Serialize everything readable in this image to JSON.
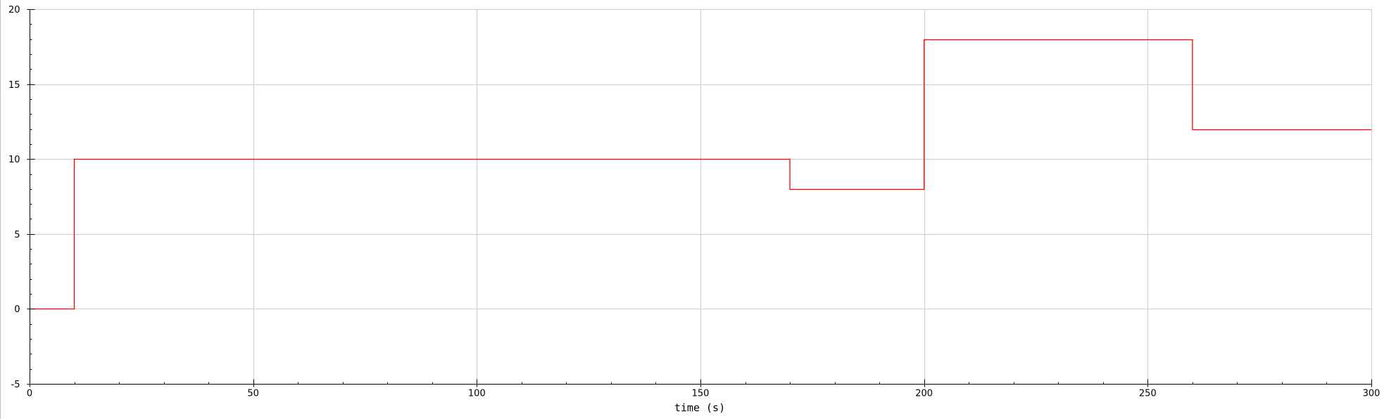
{
  "chart_data": {
    "type": "line",
    "step": true,
    "xlabel": "time (s)",
    "ylabel": "",
    "xlim": [
      0,
      300
    ],
    "ylim": [
      -5,
      20
    ],
    "xticks": [
      0,
      50,
      100,
      150,
      200,
      250,
      300
    ],
    "yticks": [
      -5,
      0,
      5,
      10,
      15,
      20
    ],
    "x_minor_step": 10,
    "y_minor_step": 1,
    "grid": true,
    "legend": "none",
    "series": [
      {
        "color": "#ff0000",
        "x": [
          0,
          10,
          10,
          170,
          170,
          200,
          200,
          260,
          260,
          300
        ],
        "y": [
          0,
          0,
          10,
          10,
          8,
          8,
          18,
          18,
          12,
          12
        ]
      }
    ]
  },
  "colors": {
    "grid": "#cccccc",
    "axis": "#000000",
    "series": "#ff0000"
  }
}
